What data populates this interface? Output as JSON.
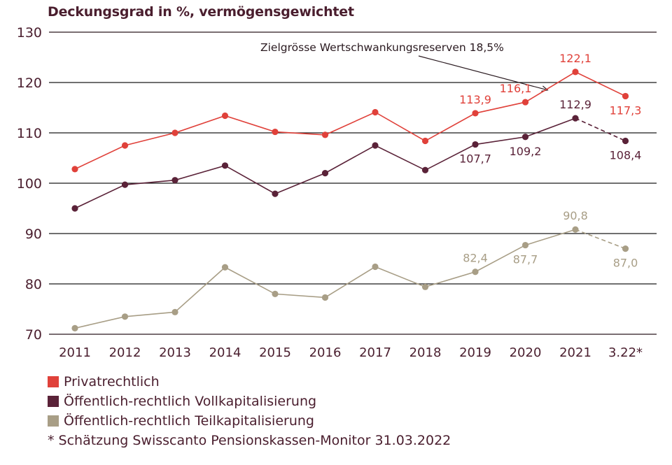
{
  "chart_data": {
    "type": "line",
    "title": "Deckungsgrad in %, vermögensgewichtet",
    "xlabel": "",
    "ylabel": "",
    "ylim": [
      70,
      130
    ],
    "yticks": [
      70,
      80,
      90,
      100,
      110,
      120,
      130
    ],
    "ytick_labels": [
      "70",
      "80",
      "90",
      "100",
      "110",
      "120",
      "130"
    ],
    "grid": true,
    "categories": [
      "2011",
      "2012",
      "2013",
      "2014",
      "2015",
      "2016",
      "2017",
      "2018",
      "2019",
      "2020",
      "2021",
      "3.22*"
    ],
    "series": [
      {
        "name": "Privatrechtlich",
        "color": "#e0413a",
        "values": [
          102.8,
          107.5,
          110.0,
          113.4,
          110.2,
          109.6,
          114.1,
          108.4,
          113.9,
          116.1,
          122.1,
          117.3
        ],
        "labels": [
          {
            "index": 8,
            "text": "113,9",
            "pos": "above"
          },
          {
            "index": 9,
            "text": "116,1",
            "pos": "above-left"
          },
          {
            "index": 10,
            "text": "122,1",
            "pos": "above"
          },
          {
            "index": 11,
            "text": "117,3",
            "pos": "below"
          }
        ],
        "last_segment_dashed": false
      },
      {
        "name": "Öffentlich-rechtlich Vollkapitalisierung",
        "color": "#5a2238",
        "values": [
          95.0,
          99.7,
          100.6,
          103.5,
          97.9,
          102.0,
          107.5,
          102.6,
          107.7,
          109.2,
          112.9,
          108.4
        ],
        "labels": [
          {
            "index": 8,
            "text": "107,7",
            "pos": "below"
          },
          {
            "index": 9,
            "text": "109,2",
            "pos": "below"
          },
          {
            "index": 10,
            "text": "112,9",
            "pos": "above"
          },
          {
            "index": 11,
            "text": "108,4",
            "pos": "below"
          }
        ],
        "last_segment_dashed": true
      },
      {
        "name": "Öffentlich-rechtlich Teilkapitalisierung",
        "color": "#a89e86",
        "values": [
          71.2,
          73.5,
          74.4,
          83.3,
          78.0,
          77.3,
          83.4,
          79.4,
          82.4,
          87.7,
          90.8,
          87.0
        ],
        "labels": [
          {
            "index": 8,
            "text": "82,4",
            "pos": "above"
          },
          {
            "index": 9,
            "text": "87,7",
            "pos": "below"
          },
          {
            "index": 10,
            "text": "90,8",
            "pos": "above"
          },
          {
            "index": 11,
            "text": "87,0",
            "pos": "below"
          }
        ],
        "last_segment_dashed": true
      }
    ],
    "annotations": [
      {
        "text": "Zielgrösse Wertschwankungsreserven 18,5%",
        "type": "arrow",
        "points_to_value": 118.5,
        "points_to_category_between": [
          "2020",
          "2021"
        ]
      }
    ],
    "legend_position": "bottom-left",
    "footnote": "* Schätzung Swisscanto Pensionskassen-Monitor 31.03.2022"
  },
  "legend": {
    "items": [
      {
        "label": "Privatrechtlich",
        "color": "#e0413a"
      },
      {
        "label": "Öffentlich-rechtlich Vollkapitalisierung",
        "color": "#5a2238"
      },
      {
        "label": "Öffentlich-rechtlich Teilkapitalisierung",
        "color": "#a89e86"
      }
    ],
    "footnote": "* Schätzung Swisscanto Pensionskassen-Monitor 31.03.2022"
  },
  "colors": {
    "text": "#4a1e2e",
    "grid": "#1a1a1a",
    "axis": "#7a6e72"
  }
}
